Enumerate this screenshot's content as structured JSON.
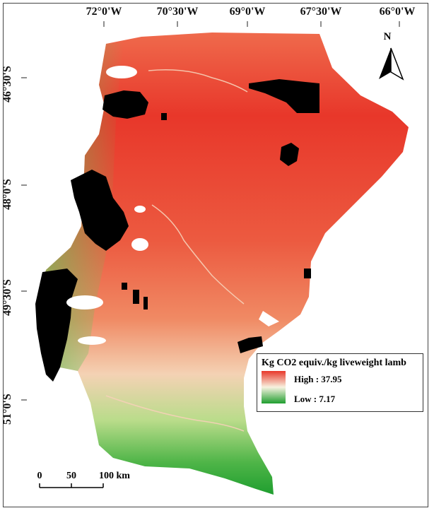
{
  "map": {
    "longitude_ticks": [
      "72°0'W",
      "70°30'W",
      "69°0'W",
      "67°30'W",
      "66°0'W"
    ],
    "latitude_ticks": [
      "46°30'S",
      "48°0'S",
      "49°30'S",
      "51°0'S"
    ],
    "north_arrow_label": "N"
  },
  "legend": {
    "title": "Kg CO2 equiv./kg liveweight lamb",
    "high": "High : 37.95",
    "low": "Low : 7.17",
    "high_color": "#e8372a",
    "mid_color": "#f7f2e0",
    "low_color": "#1f9e2f"
  },
  "scale_bar": {
    "labels": [
      "0",
      "50",
      "100 km"
    ]
  },
  "colors": {
    "high": "#e8372a",
    "mid_high": "#ef6a4c",
    "mid": "#f4d2b4",
    "low": "#1f9e2f",
    "excluded": "#000000",
    "water": "#ffffff"
  }
}
